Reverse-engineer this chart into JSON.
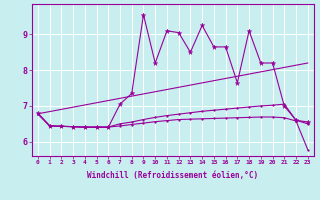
{
  "xlabel": "Windchill (Refroidissement éolien,°C)",
  "bg_color": "#c8eef0",
  "line_color": "#990099",
  "grid_color": "#aadddd",
  "xlim": [
    -0.5,
    23.5
  ],
  "ylim": [
    5.6,
    9.85
  ],
  "xticks": [
    0,
    1,
    2,
    3,
    4,
    5,
    6,
    7,
    8,
    9,
    10,
    11,
    12,
    13,
    14,
    15,
    16,
    17,
    18,
    19,
    20,
    21,
    22,
    23
  ],
  "yticks": [
    6,
    7,
    8,
    9
  ],
  "series": [
    {
      "x": [
        0,
        1,
        2,
        3,
        4,
        5,
        6,
        7,
        8,
        9,
        10,
        11,
        12,
        13,
        14,
        15,
        16,
        17,
        18,
        19,
        20,
        21,
        22,
        23
      ],
      "y": [
        6.8,
        6.45,
        6.43,
        6.42,
        6.4,
        6.4,
        6.4,
        7.05,
        7.35,
        9.55,
        8.2,
        9.1,
        9.05,
        8.5,
        9.25,
        8.65,
        8.65,
        7.65,
        9.1,
        8.2,
        8.2,
        7.0,
        6.6,
        6.55
      ],
      "marker": "*",
      "markersize": 3.5,
      "linewidth": 0.8
    },
    {
      "x": [
        0,
        23
      ],
      "y": [
        6.78,
        8.2
      ],
      "marker": null,
      "markersize": 0,
      "linewidth": 0.8
    },
    {
      "x": [
        0,
        1,
        2,
        3,
        4,
        5,
        6,
        7,
        8,
        9,
        10,
        11,
        12,
        13,
        14,
        15,
        16,
        17,
        18,
        19,
        20,
        21,
        22,
        23
      ],
      "y": [
        6.78,
        6.44,
        6.43,
        6.42,
        6.41,
        6.41,
        6.41,
        6.5,
        6.55,
        6.62,
        6.68,
        6.73,
        6.77,
        6.81,
        6.85,
        6.88,
        6.91,
        6.94,
        6.97,
        7.0,
        7.02,
        7.05,
        6.6,
        6.5
      ],
      "marker": ".",
      "markersize": 2.5,
      "linewidth": 0.8
    },
    {
      "x": [
        0,
        1,
        2,
        3,
        4,
        5,
        6,
        7,
        8,
        9,
        10,
        11,
        12,
        13,
        14,
        15,
        16,
        17,
        18,
        19,
        20,
        21,
        22,
        23
      ],
      "y": [
        6.78,
        6.44,
        6.43,
        6.42,
        6.41,
        6.41,
        6.41,
        6.44,
        6.48,
        6.52,
        6.56,
        6.59,
        6.62,
        6.63,
        6.64,
        6.65,
        6.66,
        6.67,
        6.68,
        6.69,
        6.69,
        6.67,
        6.58,
        5.78
      ],
      "marker": ".",
      "markersize": 2.5,
      "linewidth": 0.8
    }
  ]
}
